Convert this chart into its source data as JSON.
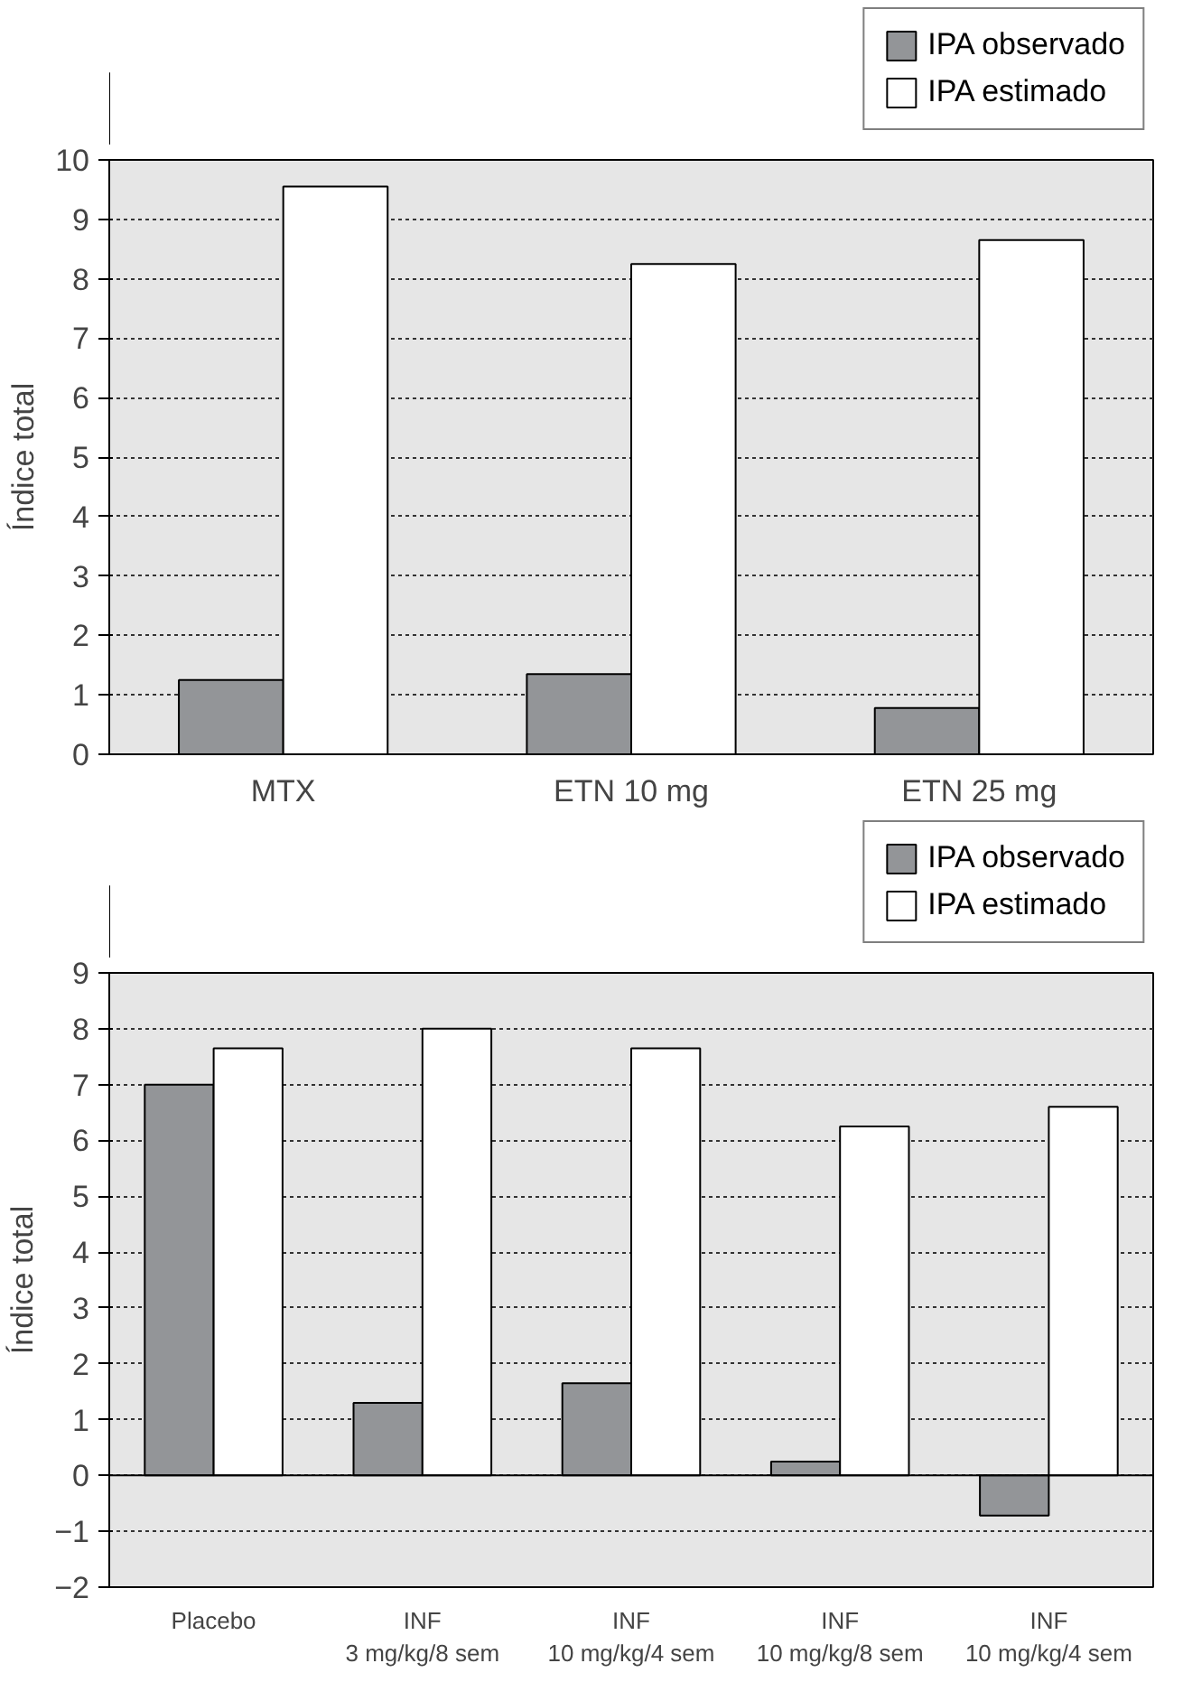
{
  "chart_data": [
    {
      "type": "bar",
      "ylabel": "Índice total",
      "categories": [
        "MTX",
        "ETN 10 mg",
        "ETN 25 mg"
      ],
      "series": [
        {
          "name": "IPA observado",
          "color": "#939598",
          "values": [
            1.25,
            1.35,
            0.78
          ]
        },
        {
          "name": "IPA estimado",
          "color": "#ffffff",
          "values": [
            9.55,
            8.25,
            8.65
          ]
        }
      ],
      "ylim": [
        0,
        10
      ],
      "yticks": [
        0,
        1,
        2,
        3,
        4,
        5,
        6,
        7,
        8,
        9,
        10
      ],
      "grid": "y",
      "legend": "top right"
    },
    {
      "type": "bar",
      "ylabel": "Índice total",
      "categories": [
        "Placebo",
        "INF\n3 mg/kg/8 sem",
        "INF\n10 mg/kg/4 sem",
        "INF\n10 mg/kg/8 sem",
        "INF\n10 mg/kg/4 sem"
      ],
      "series": [
        {
          "name": "IPA observado",
          "color": "#939598",
          "values": [
            7.0,
            1.3,
            1.65,
            0.25,
            -0.72
          ]
        },
        {
          "name": "IPA estimado",
          "color": "#ffffff",
          "values": [
            7.65,
            8.0,
            7.65,
            6.25,
            6.6
          ]
        }
      ],
      "ylim": [
        -2,
        9
      ],
      "yticks": [
        {
          "value": -2,
          "label": "−2"
        },
        {
          "value": -1,
          "label": "−1"
        },
        0,
        1,
        2,
        3,
        4,
        5,
        6,
        7,
        8,
        9
      ],
      "grid": "y",
      "legend": "top right"
    }
  ]
}
